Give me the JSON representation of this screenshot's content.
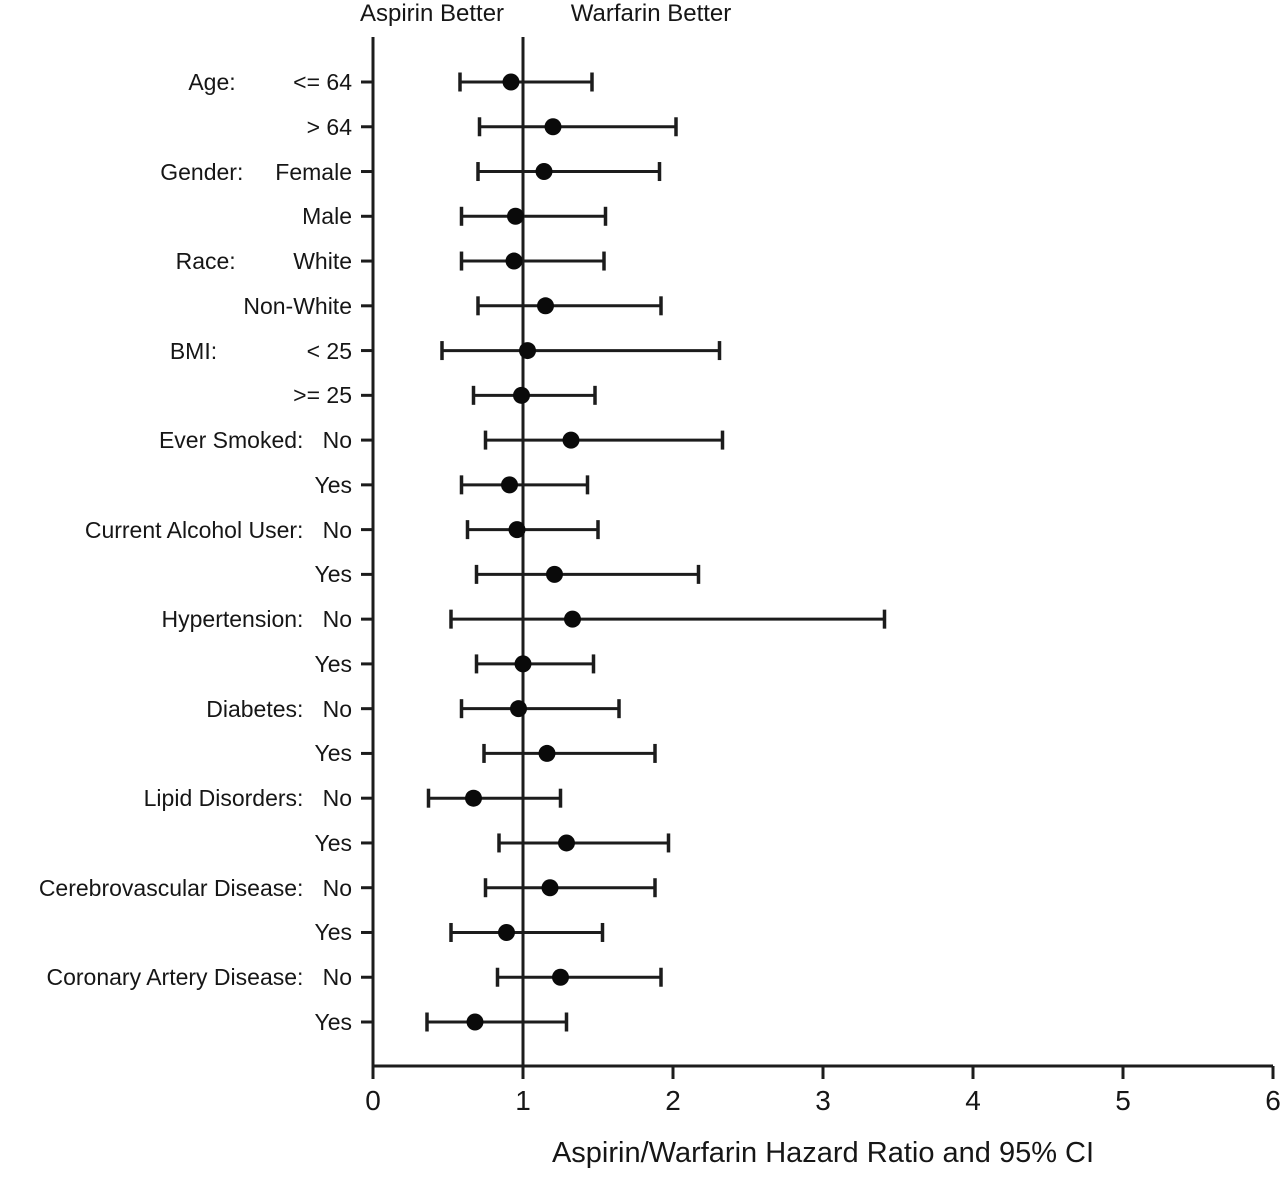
{
  "page": {
    "background": "#ffffff"
  },
  "colors": {
    "line": "#1c1c1c",
    "marker": "#0a0a0a",
    "text": "#161616"
  },
  "chart_data": {
    "type": "forest",
    "orientation": "horizontal",
    "xlabel": "Aspirin/Warfarin Hazard Ratio and 95% CI",
    "xlim": [
      0,
      6
    ],
    "x_ticks": [
      0,
      1,
      2,
      3,
      4,
      5,
      6
    ],
    "reference_line": 1,
    "annotations": {
      "left_of_reference": "Aspirin Better",
      "right_of_reference": "Warfarin Better"
    },
    "rows": [
      {
        "group": "Age:",
        "level": "<= 64",
        "display": "Age:         <= 64",
        "hr": 0.92,
        "ci_low": 0.58,
        "ci_high": 1.46
      },
      {
        "group": "",
        "level": "> 64",
        "display": "> 64",
        "hr": 1.2,
        "ci_low": 0.71,
        "ci_high": 2.02
      },
      {
        "group": "Gender:",
        "level": "Female",
        "display": "Gender:     Female",
        "hr": 1.14,
        "ci_low": 0.7,
        "ci_high": 1.91
      },
      {
        "group": "",
        "level": "Male",
        "display": "Male",
        "hr": 0.95,
        "ci_low": 0.59,
        "ci_high": 1.55
      },
      {
        "group": "Race:",
        "level": "White",
        "display": "Race:         White",
        "hr": 0.94,
        "ci_low": 0.59,
        "ci_high": 1.54
      },
      {
        "group": "",
        "level": "Non-White",
        "display": "Non-White",
        "hr": 1.15,
        "ci_low": 0.7,
        "ci_high": 1.92
      },
      {
        "group": "BMI:",
        "level": "< 25",
        "display": "BMI:              < 25",
        "hr": 1.03,
        "ci_low": 0.46,
        "ci_high": 2.31
      },
      {
        "group": "",
        "level": ">= 25",
        "display": ">= 25",
        "hr": 0.99,
        "ci_low": 0.67,
        "ci_high": 1.48
      },
      {
        "group": "Ever Smoked:",
        "level": "No",
        "display": "Ever Smoked:   No",
        "hr": 1.32,
        "ci_low": 0.75,
        "ci_high": 2.33
      },
      {
        "group": "",
        "level": "Yes",
        "display": "Yes",
        "hr": 0.91,
        "ci_low": 0.59,
        "ci_high": 1.43
      },
      {
        "group": "Current Alcohol User:",
        "level": "No",
        "display": "Current Alcohol User:   No",
        "hr": 0.96,
        "ci_low": 0.63,
        "ci_high": 1.5
      },
      {
        "group": "",
        "level": "Yes",
        "display": "Yes",
        "hr": 1.21,
        "ci_low": 0.69,
        "ci_high": 2.17
      },
      {
        "group": "Hypertension:",
        "level": "No",
        "display": "Hypertension:   No",
        "hr": 1.33,
        "ci_low": 0.52,
        "ci_high": 3.41
      },
      {
        "group": "",
        "level": "Yes",
        "display": "Yes",
        "hr": 1.0,
        "ci_low": 0.69,
        "ci_high": 1.47
      },
      {
        "group": "Diabetes:",
        "level": "No",
        "display": "Diabetes:   No",
        "hr": 0.97,
        "ci_low": 0.59,
        "ci_high": 1.64
      },
      {
        "group": "",
        "level": "Yes",
        "display": "Yes",
        "hr": 1.16,
        "ci_low": 0.74,
        "ci_high": 1.88
      },
      {
        "group": "Lipid Disorders:",
        "level": "No",
        "display": "Lipid Disorders:   No",
        "hr": 0.67,
        "ci_low": 0.37,
        "ci_high": 1.25
      },
      {
        "group": "",
        "level": "Yes",
        "display": "Yes",
        "hr": 1.29,
        "ci_low": 0.84,
        "ci_high": 1.97
      },
      {
        "group": "Cerebrovascular Disease:",
        "level": "No",
        "display": "Cerebrovascular Disease:   No",
        "hr": 1.18,
        "ci_low": 0.75,
        "ci_high": 1.88
      },
      {
        "group": "",
        "level": "Yes",
        "display": "Yes",
        "hr": 0.89,
        "ci_low": 0.52,
        "ci_high": 1.53
      },
      {
        "group": "Coronary Artery Disease:",
        "level": "No",
        "display": "Coronary Artery Disease:   No",
        "hr": 1.25,
        "ci_low": 0.83,
        "ci_high": 1.92
      },
      {
        "group": "",
        "level": "Yes",
        "display": "Yes",
        "hr": 0.68,
        "ci_low": 0.36,
        "ci_high": 1.29
      }
    ]
  }
}
